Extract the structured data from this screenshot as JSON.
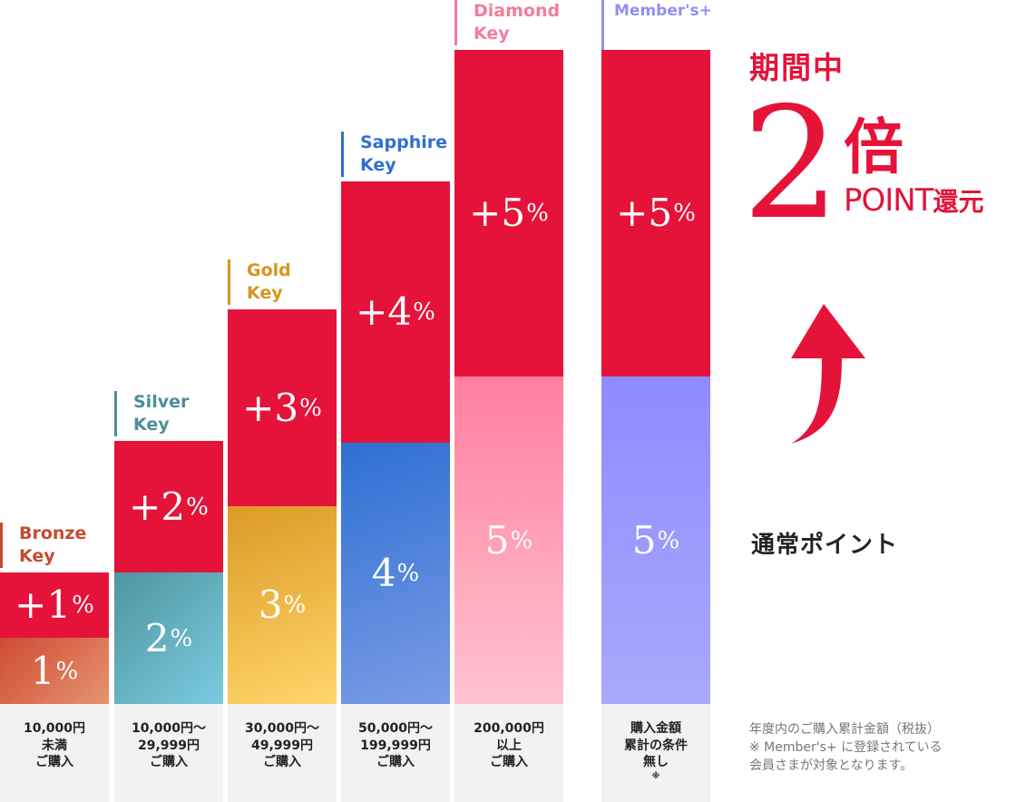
{
  "tiers": [
    {
      "label_1": "Bronze",
      "label_2": "Key",
      "color": "#c9492f",
      "bonus": "+1",
      "base": "1",
      "pct": "%",
      "cond": [
        "10,000円",
        "未満",
        "ご購入"
      ]
    },
    {
      "label_1": "Silver",
      "label_2": "Key",
      "color": "#4a8f99",
      "bonus": "+2",
      "base": "2",
      "pct": "%",
      "cond": [
        "10,000円〜",
        "29,999円",
        "ご購入"
      ]
    },
    {
      "label_1": "Gold",
      "label_2": "Key",
      "color": "#d89420",
      "bonus": "+3",
      "base": "3",
      "pct": "%",
      "cond": [
        "30,000円〜",
        "49,999円",
        "ご購入"
      ]
    },
    {
      "label_1": "Sapphire",
      "label_2": "Key",
      "color": "#2f6fd0",
      "bonus": "+4",
      "base": "4",
      "pct": "%",
      "cond": [
        "50,000円〜",
        "199,999円",
        "ご購入"
      ]
    },
    {
      "label_1": "Diamond",
      "label_2": "Key",
      "color": "#f57c9a",
      "bonus": "+5",
      "base": "5",
      "pct": "%",
      "cond": [
        "200,000円",
        "以上",
        "ご購入"
      ]
    },
    {
      "label_1": "Member's+",
      "label_2": "",
      "color": "#8f8ff5",
      "bonus": "+5",
      "base": "5",
      "pct": "%",
      "cond": [
        "購入金額",
        "累計の条件",
        "無し"
      ],
      "cond_mark": "※"
    }
  ],
  "promo": {
    "period": "期間中",
    "multiplier": "2",
    "unit": "倍",
    "point_label": "POINT",
    "point_suffix": "還元"
  },
  "normal_points": "通常ポイント",
  "note": [
    "年度内のご購入累計金額（税抜）",
    "※ Member's+ に登録されている",
    "会員さまが対象となります。"
  ]
}
